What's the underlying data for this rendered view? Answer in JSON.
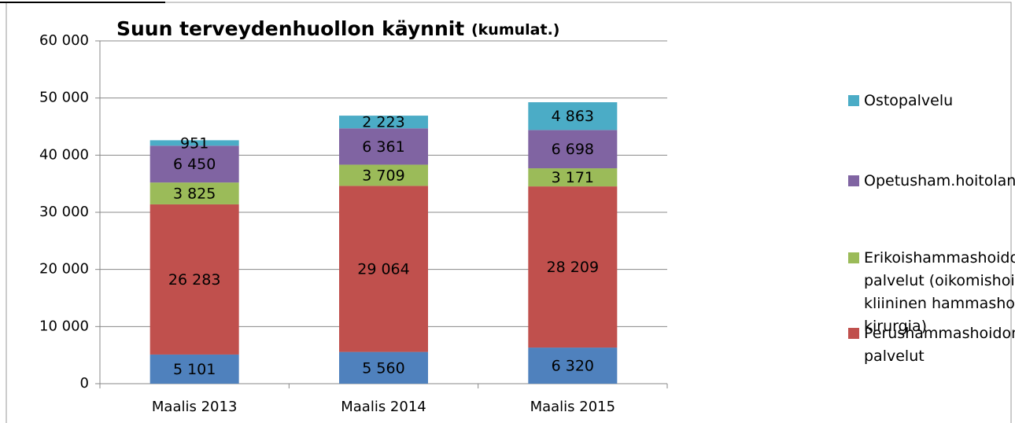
{
  "chart_data": {
    "type": "stacked_bar",
    "title": "Suun terveydenhuollon käynnit",
    "title_suffix": "(kumulat.)",
    "categories": [
      "Maalis 2013",
      "Maalis 2014",
      "Maalis 2015"
    ],
    "series": [
      {
        "color": "#4f81bd",
        "values": [
          5101,
          5560,
          6320
        ],
        "value_labels": [
          "5 101",
          "5 560",
          "6 320"
        ]
      },
      {
        "name": "Perushammashoidon palvelut",
        "color": "#c0504d",
        "values": [
          26283,
          29064,
          28209
        ],
        "value_labels": [
          "26 283",
          "29 064",
          "28 209"
        ]
      },
      {
        "name": "Erikoishammashoidon palvelut (oikomishoito, kliininen hammashoito, kirurgia)",
        "color": "#9bbb59",
        "values": [
          3825,
          3709,
          3171
        ],
        "value_labels": [
          "3 825",
          "3 709",
          "3 171"
        ]
      },
      {
        "name": "Opetusham.hoitolan palv.",
        "color": "#8064a2",
        "values": [
          6450,
          6361,
          6698
        ],
        "value_labels": [
          "6 450",
          "6 361",
          "6 698"
        ]
      },
      {
        "name": "Ostopalvelu",
        "color": "#4bacc6",
        "values": [
          951,
          2223,
          4863
        ],
        "value_labels": [
          "951",
          "2 223",
          "4 863"
        ]
      }
    ],
    "ylim": [
      0,
      60000
    ],
    "yticks": [
      0,
      {
        "value": 10000,
        "label": "10 000"
      },
      {
        "value": 20000,
        "label": "20 000"
      },
      {
        "value": 30000,
        "label": "30 000"
      },
      {
        "value": 40000,
        "label": "40 000"
      },
      {
        "value": 50000,
        "label": "50 000"
      },
      {
        "value": 60000,
        "label": "60 000"
      }
    ],
    "grid": true,
    "legend": "right"
  }
}
